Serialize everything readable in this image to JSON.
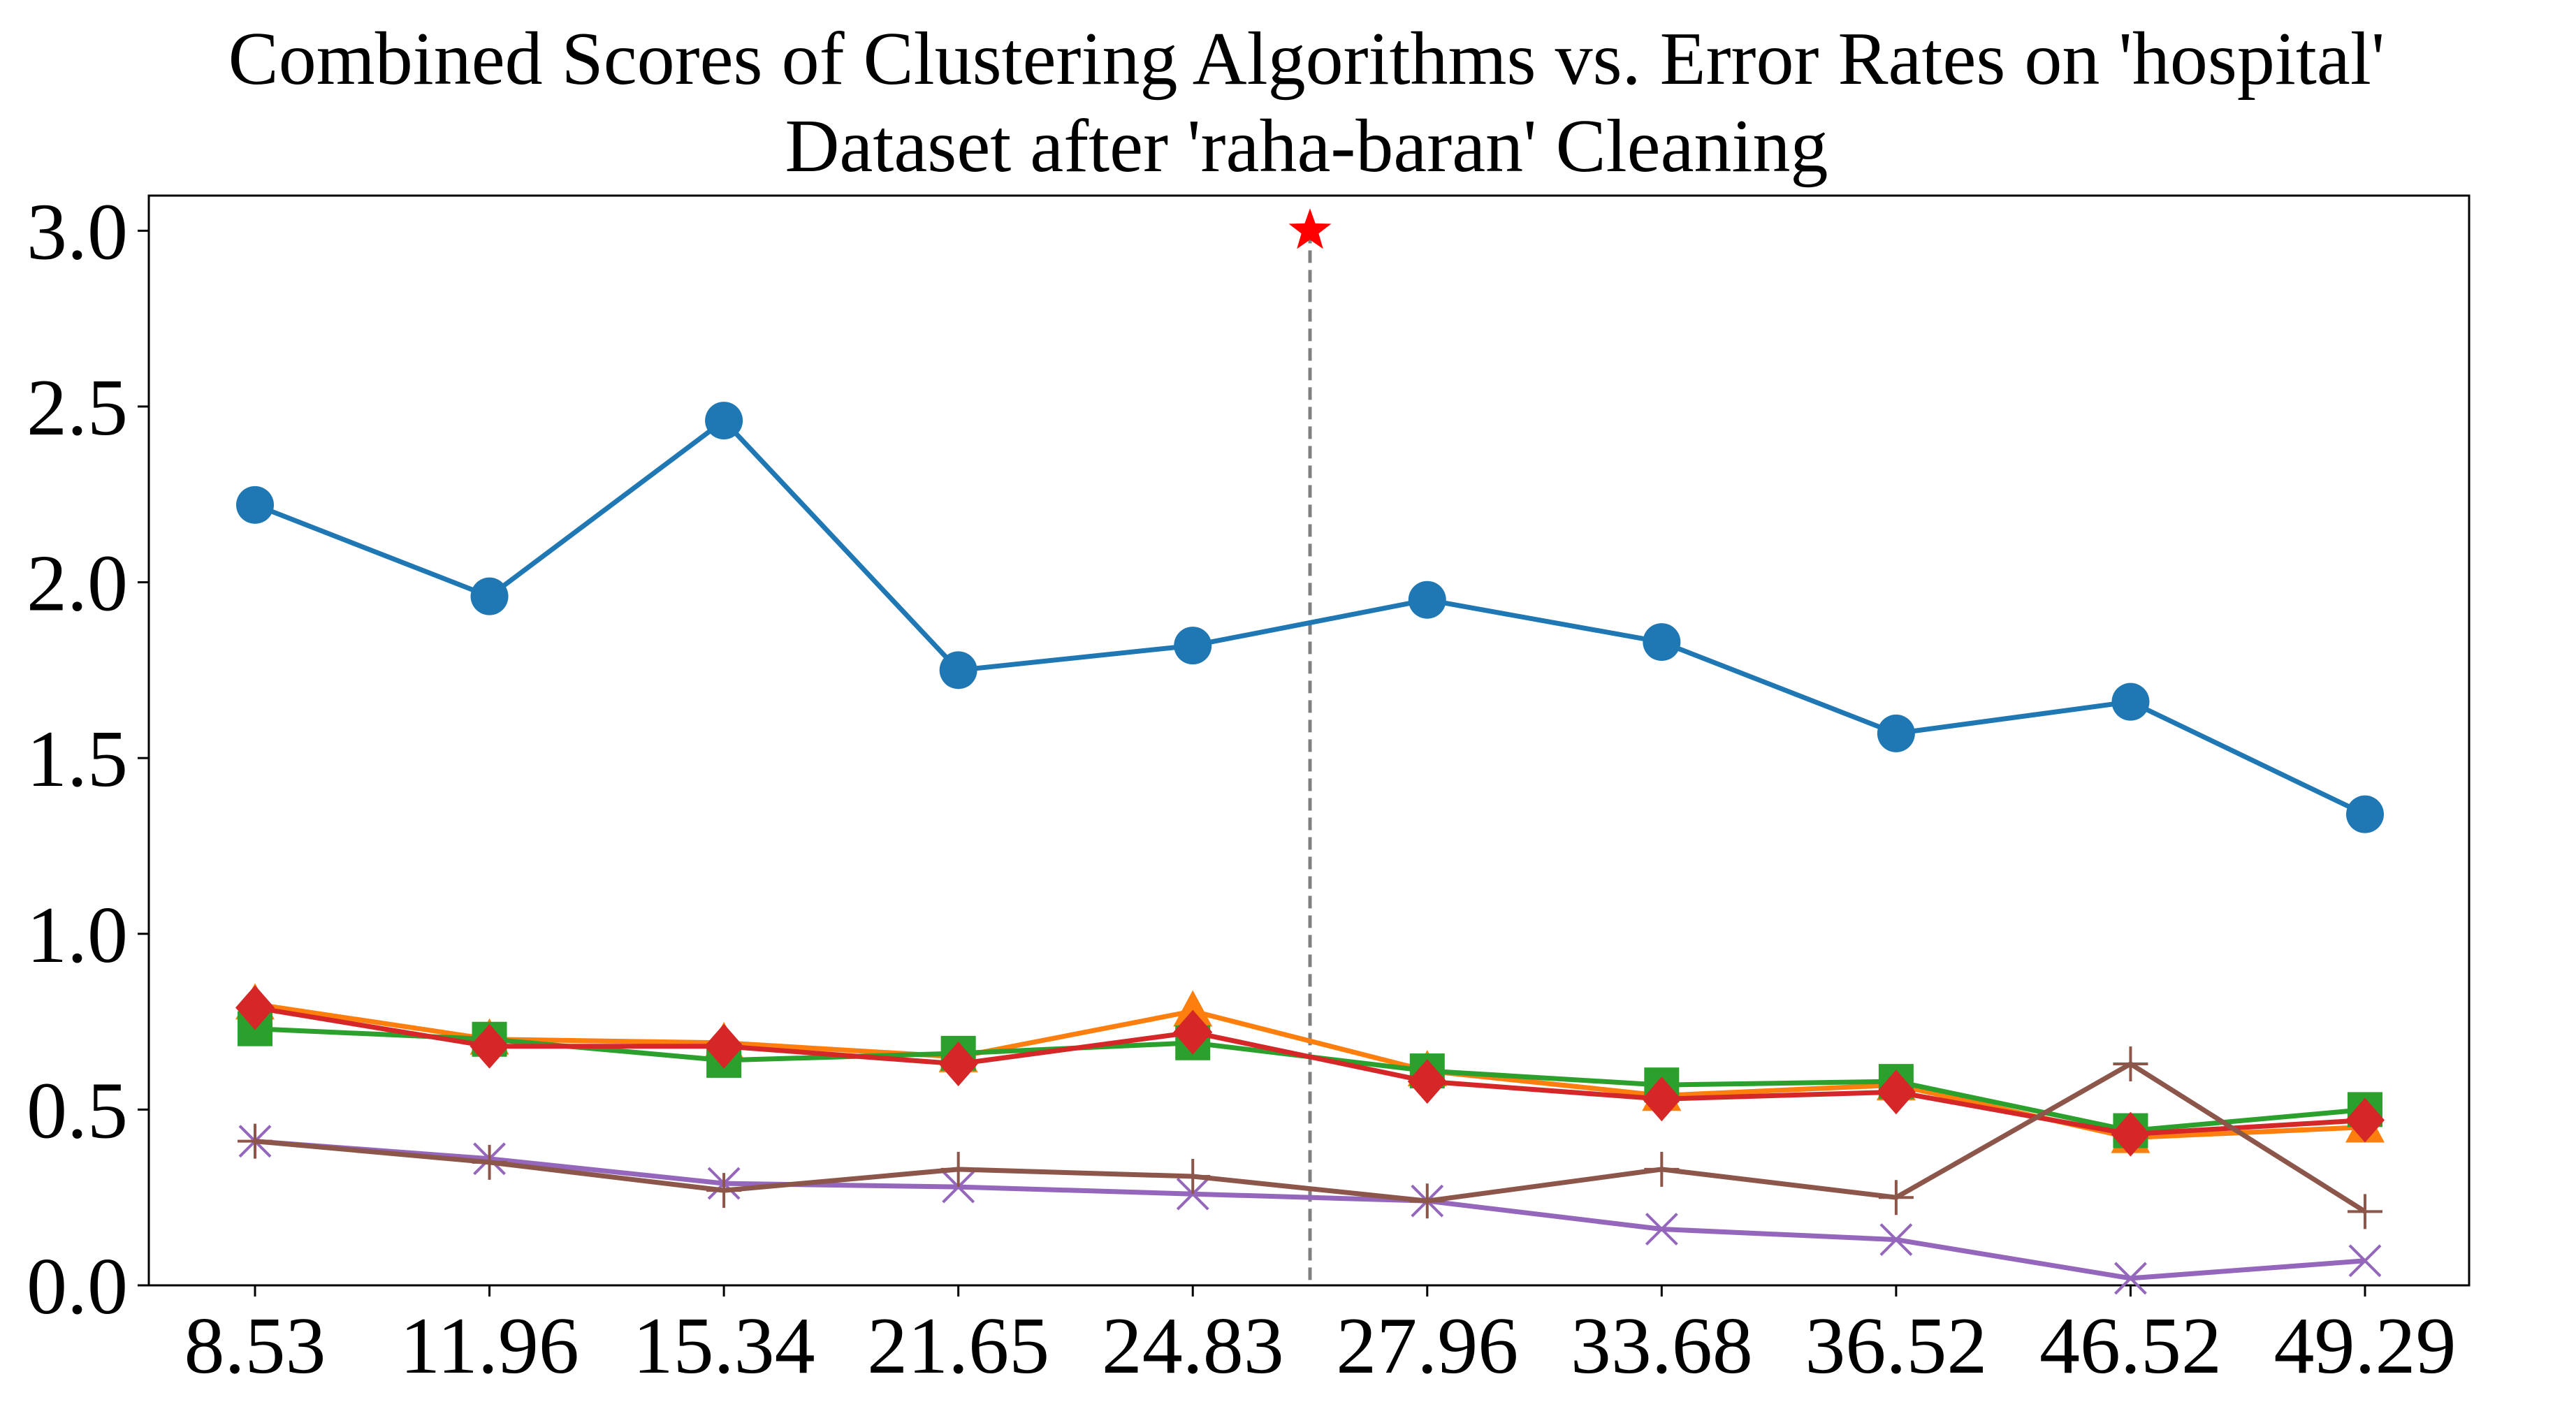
{
  "chart_data": {
    "type": "line",
    "title_lines": [
      "Combined Scores of Clustering Algorithms vs. Error Rates on 'hospital'",
      "Dataset after 'raha-baran' Cleaning"
    ],
    "xlabel": "",
    "ylabel": "",
    "categories": [
      "8.53",
      "11.96",
      "15.34",
      "21.65",
      "24.83",
      "27.96",
      "33.68",
      "36.52",
      "46.52",
      "49.29"
    ],
    "y_ticks": [
      "0.0",
      "0.5",
      "1.0",
      "1.5",
      "2.0",
      "2.5",
      "3.0"
    ],
    "ylim": [
      0,
      3.1
    ],
    "grid": false,
    "legend": "none",
    "reference_line": {
      "between_categories": [
        "24.83",
        "27.96"
      ],
      "position": 4.5,
      "style": "dashed",
      "color": "#808080"
    },
    "marker_star": {
      "position": 4.5,
      "y": 3.0,
      "color": "#ff0000"
    },
    "series": [
      {
        "marker": "circle",
        "color": "#1f77b4",
        "values": [
          2.22,
          1.96,
          2.46,
          1.75,
          1.82,
          1.95,
          1.83,
          1.57,
          1.66,
          1.34
        ]
      },
      {
        "marker": "triangle",
        "color": "#ff7f0e",
        "values": [
          0.8,
          0.7,
          0.69,
          0.65,
          0.78,
          0.61,
          0.54,
          0.57,
          0.42,
          0.45
        ]
      },
      {
        "marker": "square",
        "color": "#2ca02c",
        "values": [
          0.73,
          0.7,
          0.64,
          0.66,
          0.69,
          0.61,
          0.57,
          0.58,
          0.44,
          0.5
        ]
      },
      {
        "marker": "diamond",
        "color": "#d62728",
        "values": [
          0.79,
          0.68,
          0.68,
          0.63,
          0.72,
          0.58,
          0.53,
          0.55,
          0.43,
          0.47
        ]
      },
      {
        "marker": "x",
        "color": "#9467bd",
        "values": [
          0.41,
          0.36,
          0.29,
          0.28,
          0.26,
          0.24,
          0.16,
          0.13,
          0.02,
          0.07
        ]
      },
      {
        "marker": "plus",
        "color": "#8c564b",
        "values": [
          0.41,
          0.35,
          0.27,
          0.33,
          0.31,
          0.24,
          0.33,
          0.25,
          0.63,
          0.21
        ]
      }
    ]
  }
}
